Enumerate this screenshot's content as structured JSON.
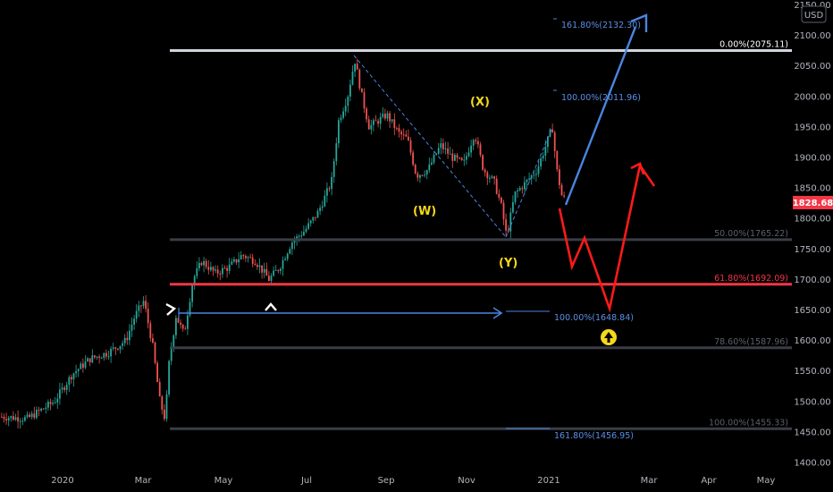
{
  "chart_data": {
    "type": "candlestick",
    "instrument": {
      "currency_button": "USD",
      "last_price": "1828.68",
      "last_price_color": "#f23645"
    },
    "y_axis": {
      "range": [
        1400,
        2150
      ],
      "ticks": [
        "1400.00",
        "1450.00",
        "1500.00",
        "1550.00",
        "1600.00",
        "1650.00",
        "1700.00",
        "1750.00",
        "1800.00",
        "1850.00",
        "1900.00",
        "1950.00",
        "2000.00",
        "2050.00",
        "2100.00",
        "2150.00"
      ]
    },
    "x_axis": {
      "ticks": [
        "2020",
        "Mar",
        "May",
        "Jul",
        "Sep",
        "Nov",
        "2021",
        "Mar",
        "Apr",
        "May"
      ]
    },
    "horizontal_levels": [
      {
        "label": "0.00%(2075.11)",
        "price": 2075.11,
        "color": "#d1d4dc"
      },
      {
        "label": "50.00%(1765.22)",
        "price": 1765.22,
        "color": "#3a3d47"
      },
      {
        "label": "61.80%(1692.09)",
        "price": 1692.09,
        "color": "#f23645"
      },
      {
        "label": "78.60%(1587.96)",
        "price": 1587.96,
        "color": "#3a3d47"
      },
      {
        "label": "100.00%(1455.33)",
        "price": 1455.33,
        "color": "#3a3d47"
      }
    ],
    "projection_labels": [
      {
        "label": "161.80%(2132.30)",
        "price": 2132.3
      },
      {
        "label": "100.00%(2011.96)",
        "price": 2011.96
      },
      {
        "label": "100.00%(1648.84)",
        "price": 1648.84
      },
      {
        "label": "161.80%(1456.95)",
        "price": 1456.95
      }
    ],
    "wave_labels": [
      "(W)",
      "(X)",
      "(Y)"
    ],
    "colors": {
      "up": "#26a69a",
      "down": "#ef5350",
      "bull_path": "#4a85e0",
      "bear_path": "#ff1a1a",
      "marker": "#f5d81a"
    }
  }
}
